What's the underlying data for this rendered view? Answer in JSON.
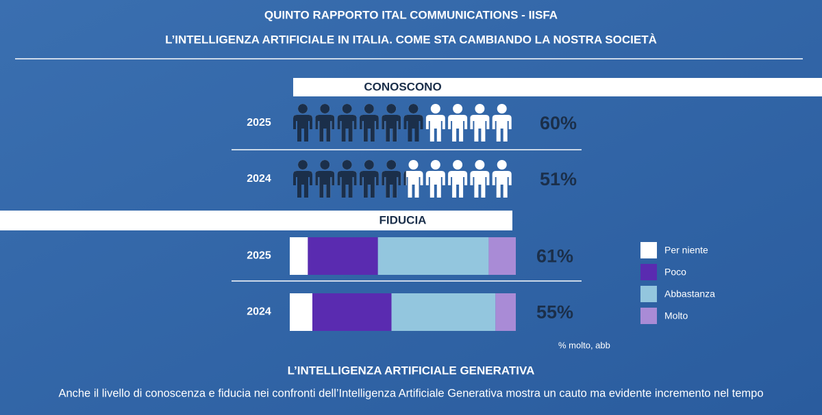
{
  "header": {
    "title": "QUINTO RAPPORTO ITAL COMMUNICATIONS - IISFA",
    "subtitle": "L’INTELLIGENZA ARTIFICIALE IN ITALIA. COME STA CAMBIANDO LA NOSTRA SOCIETÀ"
  },
  "chart_data": [
    {
      "type": "pictogram",
      "title": "CONOSCONO",
      "categories": [
        "2025",
        "2024"
      ],
      "values": [
        60,
        51
      ],
      "value_labels": [
        "60%",
        "51%"
      ],
      "xlim": [
        0,
        100
      ],
      "color": "#1b2f4a"
    },
    {
      "type": "stacked_bar",
      "title": "FIDUCIA",
      "categories": [
        "2025",
        "2024"
      ],
      "xlim": [
        0,
        100
      ],
      "series": [
        {
          "name": "Per niente",
          "color": "#ffffff",
          "values": [
            8,
            10
          ]
        },
        {
          "name": "Poco",
          "color": "#5a2bb0",
          "values": [
            31,
            35
          ]
        },
        {
          "name": "Abbastanza",
          "color": "#93c6de",
          "values": [
            49,
            46
          ]
        },
        {
          "name": "Molto",
          "color": "#a98bd6",
          "values": [
            12,
            9
          ]
        }
      ],
      "totals": {
        "values": [
          61,
          55
        ],
        "value_labels": [
          "61%",
          "55%"
        ]
      },
      "note": "% molto, abb"
    }
  ],
  "footer": {
    "title": "L’INTELLIGENZA ARTIFICIALE GENERATIVA",
    "text": "Anche il livello di conoscenza e fiducia nei confronti dell’Intelligenza Artificiale Generativa mostra un cauto ma evidente incremento nel tempo"
  }
}
